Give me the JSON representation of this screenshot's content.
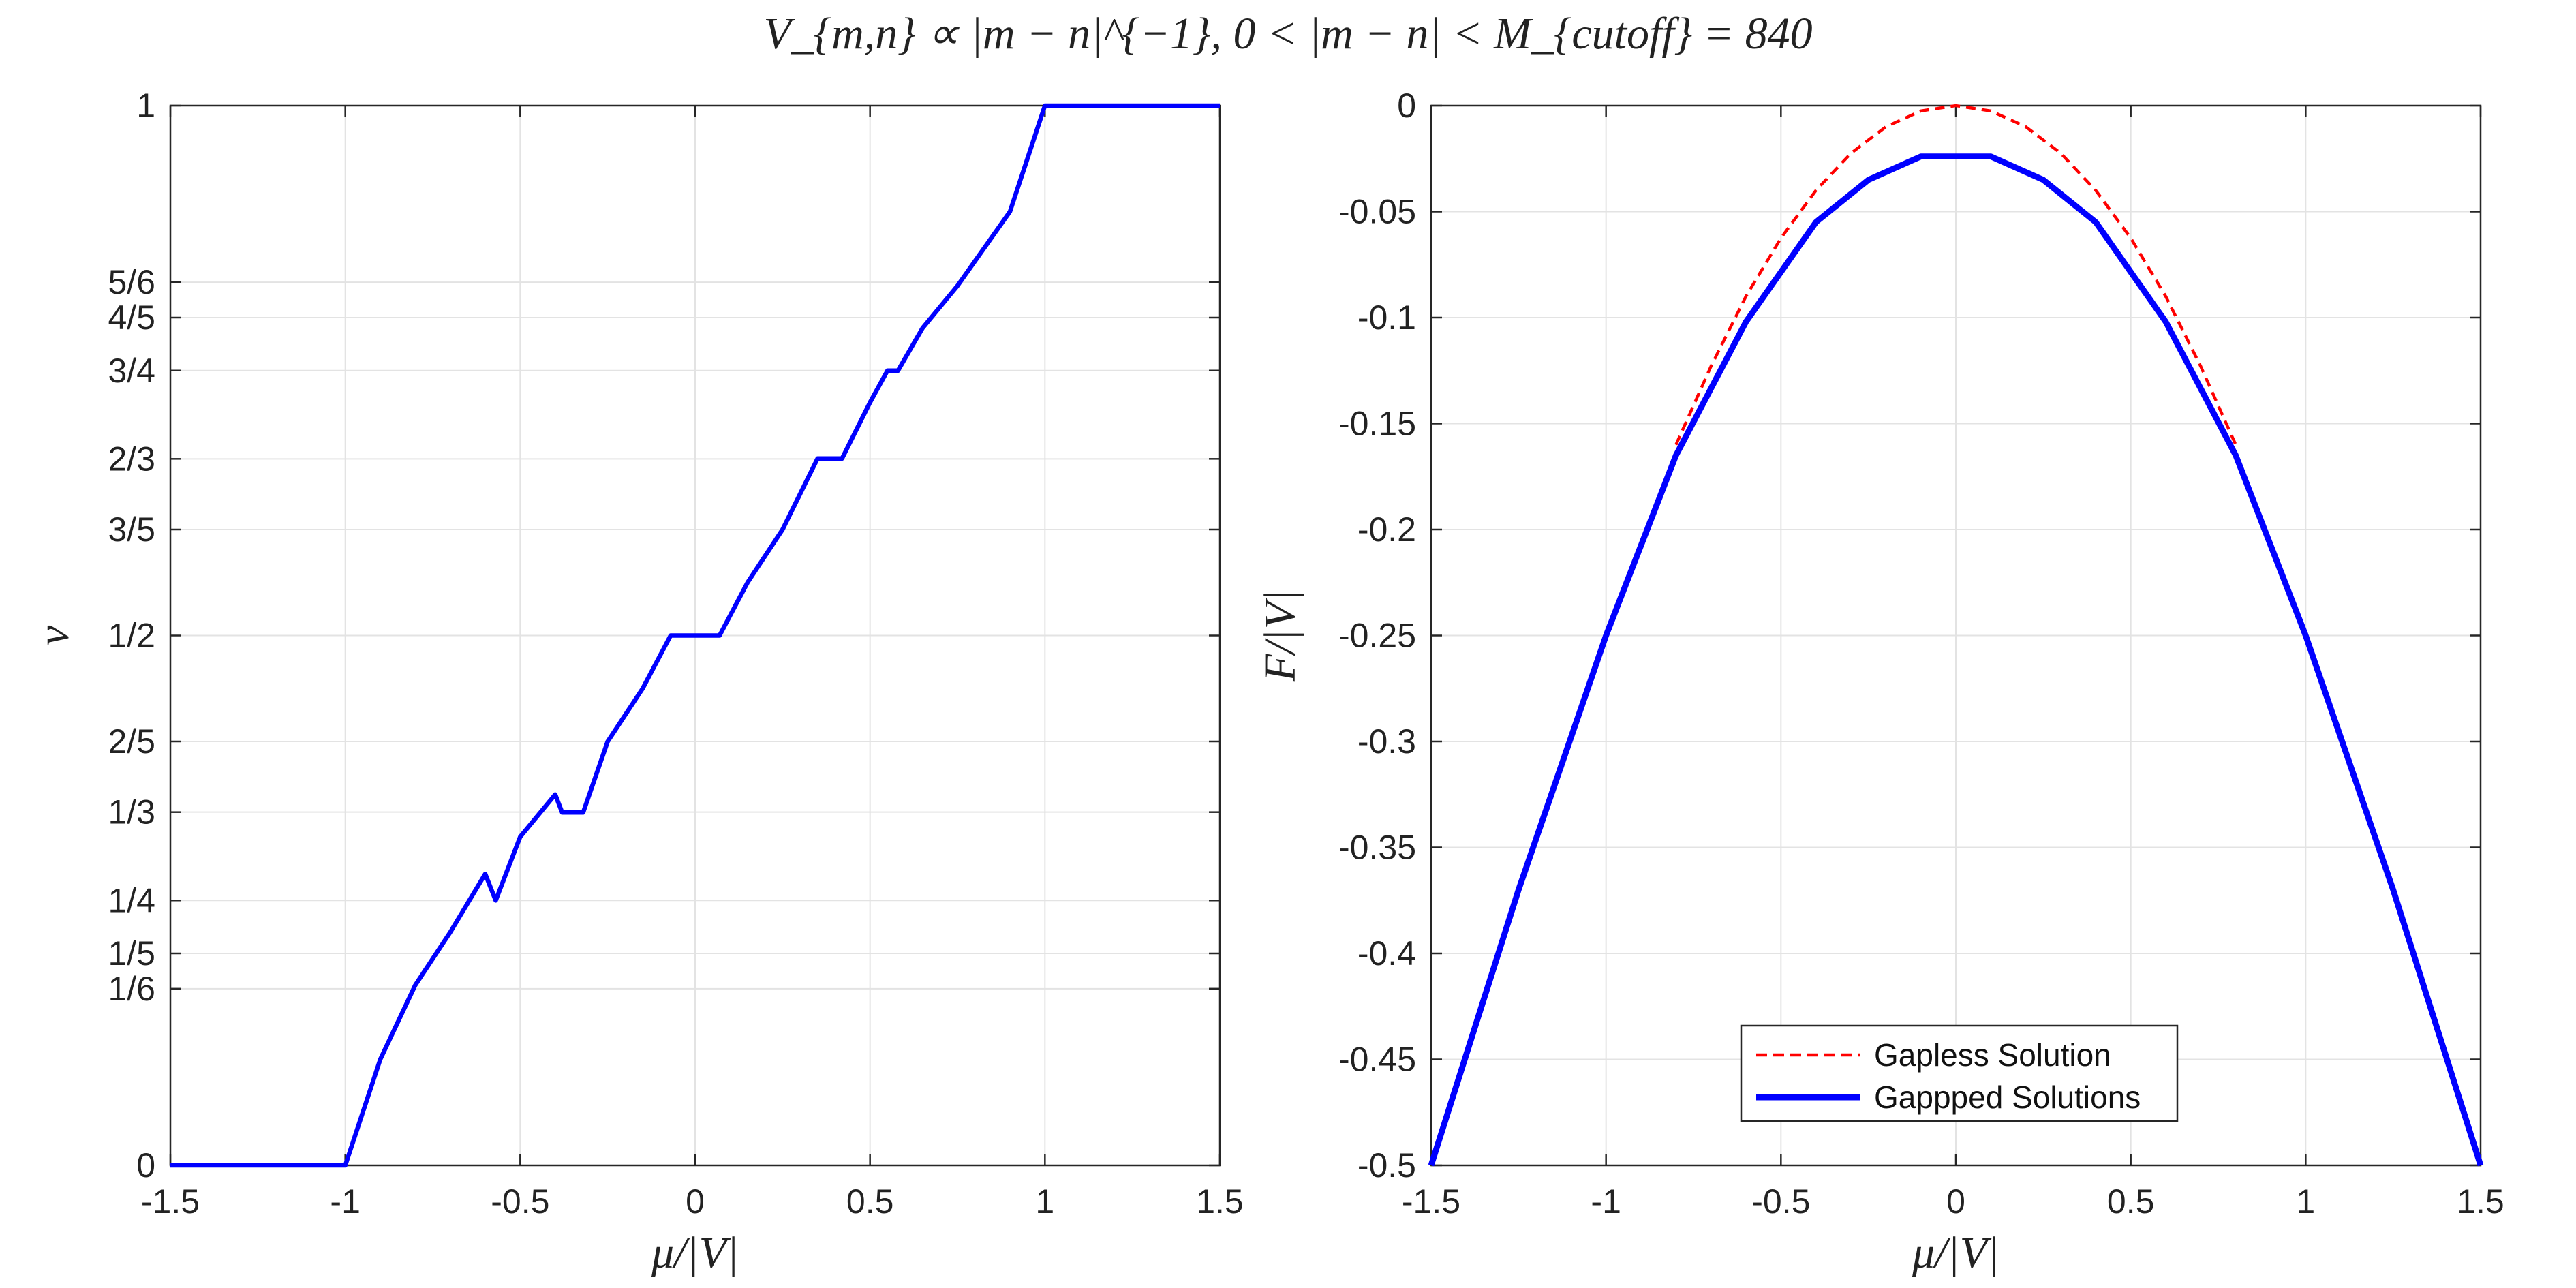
{
  "figure": {
    "title": "V_{m,n} ∝ |m − n|^{−1},  0 < |m − n| < M_{cutoff} = 840"
  },
  "chart_data": [
    {
      "type": "line",
      "xlabel": "μ/|V|",
      "ylabel": "ν",
      "xlim": [
        -1.5,
        1.5
      ],
      "ylim": [
        0,
        1
      ],
      "grid": true,
      "xticks": [
        {
          "v": -1.5,
          "label": "-1.5"
        },
        {
          "v": -1,
          "label": "-1"
        },
        {
          "v": -0.5,
          "label": "-0.5"
        },
        {
          "v": 0,
          "label": "0"
        },
        {
          "v": 0.5,
          "label": "0.5"
        },
        {
          "v": 1,
          "label": "1"
        },
        {
          "v": 1.5,
          "label": "1.5"
        }
      ],
      "yticks": [
        {
          "v": 0,
          "label": "0"
        },
        {
          "v": 0.16667,
          "label": "1/6"
        },
        {
          "v": 0.2,
          "label": "1/5"
        },
        {
          "v": 0.25,
          "label": "1/4"
        },
        {
          "v": 0.33333,
          "label": "1/3"
        },
        {
          "v": 0.4,
          "label": "2/5"
        },
        {
          "v": 0.5,
          "label": "1/2"
        },
        {
          "v": 0.6,
          "label": "3/5"
        },
        {
          "v": 0.66667,
          "label": "2/3"
        },
        {
          "v": 0.75,
          "label": "3/4"
        },
        {
          "v": 0.8,
          "label": "4/5"
        },
        {
          "v": 0.83333,
          "label": "5/6"
        },
        {
          "v": 1,
          "label": "1"
        }
      ],
      "series": [
        {
          "color": "#0000ff",
          "width": 3,
          "dash": "",
          "x": [
            -1.5,
            -1.0,
            -0.9,
            -0.8,
            -0.7,
            -0.6,
            -0.57,
            -0.5,
            -0.4,
            -0.38,
            -0.32,
            -0.25,
            -0.15,
            -0.07,
            0.07,
            0.15,
            0.25,
            0.35,
            0.38,
            0.42,
            0.5,
            0.55,
            0.58,
            0.65,
            0.75,
            0.9,
            1.0,
            1.5
          ],
          "y": [
            0,
            0,
            0.1,
            0.17,
            0.22,
            0.275,
            0.25,
            0.31,
            0.35,
            0.333,
            0.333,
            0.4,
            0.45,
            0.5,
            0.5,
            0.55,
            0.6,
            0.667,
            0.667,
            0.667,
            0.72,
            0.75,
            0.75,
            0.79,
            0.83,
            0.9,
            1,
            1
          ]
        }
      ]
    },
    {
      "type": "line",
      "xlabel": "μ/|V|",
      "ylabel": "F/|V|",
      "xlim": [
        -1.5,
        1.5
      ],
      "ylim": [
        -0.5,
        0
      ],
      "grid": true,
      "xticks": [
        {
          "v": -1.5,
          "label": "-1.5"
        },
        {
          "v": -1,
          "label": "-1"
        },
        {
          "v": -0.5,
          "label": "-0.5"
        },
        {
          "v": 0,
          "label": "0"
        },
        {
          "v": 0.5,
          "label": "0.5"
        },
        {
          "v": 1,
          "label": "1"
        },
        {
          "v": 1.5,
          "label": "1.5"
        }
      ],
      "yticks": [
        {
          "v": 0,
          "label": "0"
        },
        {
          "v": -0.05,
          "label": "-0.05"
        },
        {
          "v": -0.1,
          "label": "-0.1"
        },
        {
          "v": -0.15,
          "label": "-0.15"
        },
        {
          "v": -0.2,
          "label": "-0.2"
        },
        {
          "v": -0.25,
          "label": "-0.25"
        },
        {
          "v": -0.3,
          "label": "-0.3"
        },
        {
          "v": -0.35,
          "label": "-0.35"
        },
        {
          "v": -0.4,
          "label": "-0.4"
        },
        {
          "v": -0.45,
          "label": "-0.45"
        },
        {
          "v": -0.5,
          "label": "-0.5"
        }
      ],
      "legend": {
        "position": "bottom-center",
        "entries": [
          {
            "label": "Gapless Solution",
            "color": "#ff0000",
            "dash": "dashed"
          },
          {
            "label": "Gappped Solutions",
            "color": "#0000ff",
            "dash": "solid"
          }
        ]
      },
      "series": [
        {
          "name": "Gapless Solution",
          "color": "#ff0000",
          "width": 2,
          "dash": "14 9",
          "x": [
            -0.8,
            -0.7,
            -0.6,
            -0.5,
            -0.4,
            -0.3,
            -0.2,
            -0.1,
            0,
            0.1,
            0.2,
            0.3,
            0.4,
            0.5,
            0.6,
            0.7,
            0.8
          ],
          "y": [
            -0.16,
            -0.123,
            -0.09,
            -0.0625,
            -0.04,
            -0.0225,
            -0.01,
            -0.0025,
            0,
            -0.0025,
            -0.01,
            -0.0225,
            -0.04,
            -0.0625,
            -0.09,
            -0.123,
            -0.16
          ]
        },
        {
          "name": "Gappped Solutions",
          "color": "#0000ff",
          "width": 4,
          "dash": "",
          "x": [
            -1.5,
            -1.25,
            -1.0,
            -0.8,
            -0.6,
            -0.4,
            -0.25,
            -0.1,
            0.1,
            0.25,
            0.4,
            0.6,
            0.8,
            1.0,
            1.25,
            1.5
          ],
          "y": [
            -0.5,
            -0.37,
            -0.25,
            -0.165,
            -0.102,
            -0.055,
            -0.035,
            -0.024,
            -0.024,
            -0.035,
            -0.055,
            -0.102,
            -0.165,
            -0.25,
            -0.37,
            -0.5
          ]
        }
      ]
    }
  ]
}
